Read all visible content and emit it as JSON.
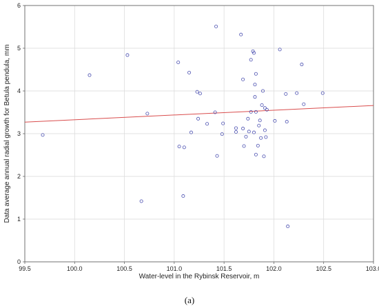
{
  "chart_data": {
    "type": "scatter",
    "title": "",
    "xlabel": "Water-level in the Rybinsk Reservoir, m",
    "ylabel": "Data average annual radial growth for Betula pendula, mm",
    "xlim": [
      99.5,
      103.0
    ],
    "ylim": [
      0,
      6
    ],
    "xticks": [
      "99.5",
      "100.0",
      "100.5",
      "101.0",
      "101.5",
      "102.0",
      "102.5",
      "103.0"
    ],
    "yticks": [
      "0",
      "1",
      "2",
      "3",
      "4",
      "5",
      "6"
    ],
    "grid": true,
    "points": [
      [
        99.68,
        2.97
      ],
      [
        100.15,
        4.37
      ],
      [
        100.53,
        4.84
      ],
      [
        100.67,
        1.42
      ],
      [
        100.73,
        3.47
      ],
      [
        101.04,
        4.67
      ],
      [
        101.05,
        2.7
      ],
      [
        101.09,
        1.54
      ],
      [
        101.1,
        2.68
      ],
      [
        101.15,
        4.43
      ],
      [
        101.17,
        3.03
      ],
      [
        101.23,
        3.98
      ],
      [
        101.24,
        3.35
      ],
      [
        101.26,
        3.94
      ],
      [
        101.33,
        3.23
      ],
      [
        101.41,
        3.5
      ],
      [
        101.42,
        5.51
      ],
      [
        101.43,
        2.48
      ],
      [
        101.48,
        2.99
      ],
      [
        101.49,
        3.24
      ],
      [
        101.62,
        3.04
      ],
      [
        101.62,
        3.13
      ],
      [
        101.67,
        5.32
      ],
      [
        101.69,
        3.12
      ],
      [
        101.69,
        4.27
      ],
      [
        101.7,
        2.71
      ],
      [
        101.72,
        2.93
      ],
      [
        101.74,
        3.35
      ],
      [
        101.75,
        3.05
      ],
      [
        101.77,
        4.73
      ],
      [
        101.77,
        3.51
      ],
      [
        101.79,
        4.93
      ],
      [
        101.8,
        3.03
      ],
      [
        101.8,
        4.89
      ],
      [
        101.81,
        3.86
      ],
      [
        101.81,
        4.15
      ],
      [
        101.82,
        2.51
      ],
      [
        101.82,
        3.51
      ],
      [
        101.82,
        4.4
      ],
      [
        101.84,
        2.72
      ],
      [
        101.85,
        3.19
      ],
      [
        101.86,
        3.31
      ],
      [
        101.87,
        2.9
      ],
      [
        101.88,
        3.67
      ],
      [
        101.89,
        4.0
      ],
      [
        101.9,
        2.47
      ],
      [
        101.91,
        3.6
      ],
      [
        101.91,
        3.08
      ],
      [
        101.92,
        2.92
      ],
      [
        101.93,
        3.56
      ],
      [
        102.01,
        3.3
      ],
      [
        102.06,
        4.97
      ],
      [
        102.12,
        3.93
      ],
      [
        102.13,
        3.28
      ],
      [
        102.14,
        0.83
      ],
      [
        102.23,
        3.95
      ],
      [
        102.28,
        4.62
      ],
      [
        102.3,
        3.69
      ],
      [
        102.49,
        3.95
      ]
    ],
    "trendline": {
      "x": [
        99.5,
        103.0
      ],
      "y": [
        3.27,
        3.66
      ],
      "color": "#d94c4c"
    },
    "point_color": "#4a4fb0"
  },
  "caption": "(a)"
}
